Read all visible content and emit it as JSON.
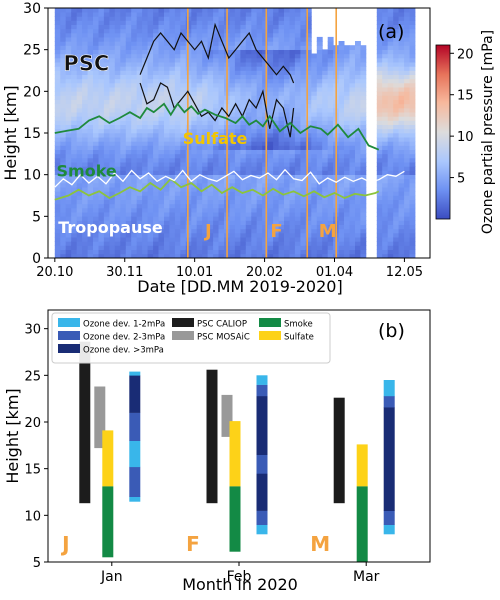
{
  "chart_data": [
    {
      "panel_label": "(a)",
      "type": "heatmap",
      "xlabel": "Date [DD.MM 2019-2020]",
      "ylabel": "Height [km]",
      "x_ticks": [
        "20.10",
        "30.11",
        "10.01",
        "20.02",
        "01.04",
        "12.05"
      ],
      "x_tick_days": [
        0,
        41,
        82,
        123,
        164,
        205
      ],
      "xlim_days": [
        -4,
        220
      ],
      "ylim": [
        0,
        30
      ],
      "y_ticks": [
        0,
        5,
        10,
        15,
        20,
        25,
        30
      ],
      "colorbar": {
        "label": "Ozone partial pressure [mPa]",
        "range": [
          0,
          21
        ],
        "ticks": [
          5,
          10,
          15,
          20
        ],
        "colors": [
          "#3b4cc0",
          "#6f92f3",
          "#aac7fd",
          "#dddcdc",
          "#f7b89c",
          "#e7745b",
          "#b40426"
        ]
      },
      "month_markers": {
        "days": [
          78,
          101,
          124,
          148,
          165
        ],
        "color": "#f4a340"
      },
      "month_letters": [
        {
          "text": "J",
          "day": 90,
          "km": 2.5
        },
        {
          "text": "F",
          "day": 130,
          "km": 2.5
        },
        {
          "text": "M",
          "day": 160,
          "km": 2.5
        }
      ],
      "annotations": [
        {
          "text": "PSC",
          "day": 5,
          "km": 22.5,
          "color": "#111111"
        },
        {
          "text": "Sulfate",
          "day": 75,
          "km": 13.7,
          "color": "#f2c500"
        },
        {
          "text": "Smoke",
          "day": 1,
          "km": 9.8,
          "color": "#1f8a3c"
        },
        {
          "text": "Tropopause",
          "day": 2,
          "km": 3.0,
          "color": "#ffffff"
        }
      ],
      "series": [
        {
          "name": "PSC",
          "color": "#111111",
          "days": [
            50,
            54,
            58,
            62,
            66,
            70,
            74,
            78,
            82,
            86,
            90,
            94,
            98,
            102,
            106,
            110,
            114,
            118,
            122,
            126,
            130,
            134,
            138,
            140
          ],
          "top": [
            22,
            24,
            26,
            27,
            26,
            25,
            27,
            26,
            25,
            26,
            24,
            28,
            26,
            24,
            25,
            26,
            27,
            25,
            24,
            23,
            22,
            23,
            22,
            21
          ],
          "bottom": [
            21,
            18.5,
            19,
            21,
            20.5,
            18,
            19,
            20,
            18.5,
            17,
            17.5,
            16.5,
            18,
            17,
            18.5,
            17,
            19,
            18,
            20,
            15.5,
            19,
            18,
            14.5,
            18
          ]
        },
        {
          "name": "Smoke top",
          "color": "#1f8a3c",
          "days": [
            0,
            8,
            14,
            20,
            26,
            32,
            38,
            44,
            50,
            54,
            58,
            64,
            68,
            72,
            76,
            80,
            84,
            88,
            94,
            100,
            106,
            110,
            114,
            118,
            122,
            126,
            132,
            138,
            144,
            150,
            156,
            160,
            166,
            172,
            178,
            184,
            190
          ],
          "values": [
            15,
            15.3,
            15.5,
            16.5,
            17,
            16.2,
            16.8,
            17.5,
            16.8,
            18,
            17.5,
            18.5,
            17.2,
            18.5,
            17.5,
            18.2,
            17.3,
            17.8,
            17.2,
            16.8,
            16.2,
            17,
            16,
            16.5,
            15.8,
            17,
            15.2,
            16.2,
            15,
            15.8,
            15.5,
            14.8,
            16,
            14.5,
            15.5,
            13.5,
            13
          ]
        },
        {
          "name": "Smoke bottom",
          "color": "#8cc43c",
          "days": [
            0,
            8,
            14,
            20,
            26,
            32,
            38,
            44,
            50,
            56,
            62,
            68,
            74,
            80,
            86,
            92,
            98,
            104,
            110,
            116,
            122,
            128,
            134,
            140,
            146,
            152,
            158,
            164,
            170,
            176,
            182,
            188,
            190
          ],
          "values": [
            7,
            7.5,
            8.2,
            7.5,
            8,
            7.2,
            7.8,
            8.5,
            8,
            9,
            8.2,
            9.5,
            8.5,
            9,
            8,
            8.8,
            7.8,
            8.5,
            7.8,
            8.2,
            7.5,
            8.3,
            7.6,
            8,
            7.4,
            8,
            7.3,
            7.8,
            7.2,
            7.7,
            7.5,
            7.8,
            8
          ]
        },
        {
          "name": "Tropopause",
          "color": "#ffffff",
          "days": [
            0,
            5,
            10,
            15,
            20,
            25,
            30,
            35,
            40,
            45,
            50,
            55,
            60,
            65,
            70,
            75,
            80,
            85,
            90,
            95,
            100,
            105,
            110,
            115,
            120,
            125,
            130,
            135,
            140,
            145,
            150,
            155,
            160,
            165,
            170,
            175,
            180,
            185,
            190,
            195,
            200,
            205
          ],
          "values": [
            8.5,
            9.5,
            8.8,
            10,
            9,
            9.8,
            8.9,
            10.2,
            9.2,
            10.5,
            9.5,
            10.2,
            9.2,
            9.8,
            9.3,
            10.5,
            9.2,
            10,
            9.5,
            9.2,
            9.8,
            10.4,
            9.4,
            9.9,
            9.6,
            10.2,
            9.4,
            10.6,
            9.5,
            9.3,
            10.3,
            8.9,
            9.6,
            9.1,
            9.7,
            9.2,
            9.6,
            9.1,
            9.4,
            10,
            9.8,
            10.4
          ]
        }
      ]
    },
    {
      "panel_label": "(b)",
      "type": "range-bar",
      "xlabel": "Month in 2020",
      "ylabel": "Height [km]",
      "categories": [
        "Jan",
        "Feb",
        "Mar"
      ],
      "month_letters": [
        "J",
        "F",
        "M"
      ],
      "ylim": [
        5,
        32
      ],
      "y_ticks": [
        5,
        10,
        15,
        20,
        25,
        30
      ],
      "legend": [
        {
          "name": "Ozone dev. 1-2mPa",
          "color": "#39b6ea"
        },
        {
          "name": "Ozone dev. 2-3mPa",
          "color": "#3a5bb6"
        },
        {
          "name": "Ozone dev. >3mPa",
          "color": "#192c75"
        },
        {
          "name": "PSC CALIOP",
          "color": "#1c1c1c"
        },
        {
          "name": "PSC MOSAiC",
          "color": "#999999"
        },
        {
          "name": "Smoke",
          "color": "#138a45"
        },
        {
          "name": "Sulfate",
          "color": "#fdd218"
        }
      ],
      "bars": [
        {
          "month": "Jan",
          "series": "PSC CALIOP",
          "from": 11.3,
          "to": 28.6
        },
        {
          "month": "Jan",
          "series": "PSC MOSAiC",
          "from": 17.2,
          "to": 23.8
        },
        {
          "month": "Jan",
          "series": "Sulfate",
          "from": 13.1,
          "to": 19.1
        },
        {
          "month": "Jan",
          "series": "Smoke",
          "from": 5.5,
          "to": 13.1
        },
        {
          "month": "Feb",
          "series": "PSC CALIOP",
          "from": 11.3,
          "to": 25.6
        },
        {
          "month": "Feb",
          "series": "PSC MOSAiC",
          "from": 18.4,
          "to": 22.9
        },
        {
          "month": "Feb",
          "series": "Sulfate",
          "from": 13.1,
          "to": 20.1
        },
        {
          "month": "Feb",
          "series": "Smoke",
          "from": 6.1,
          "to": 13.1
        },
        {
          "month": "Mar",
          "series": "PSC CALIOP",
          "from": 11.3,
          "to": 22.6
        },
        {
          "month": "Mar",
          "series": "Sulfate",
          "from": 13.1,
          "to": 17.6
        },
        {
          "month": "Mar",
          "series": "Smoke",
          "from": 5.0,
          "to": 13.1
        }
      ],
      "ozone_columns": [
        {
          "month": "Jan",
          "segments": [
            {
              "from": 11.5,
              "to": 12.0,
              "series": "Ozone dev. 1-2mPa"
            },
            {
              "from": 12.0,
              "to": 15.2,
              "series": "Ozone dev. 2-3mPa"
            },
            {
              "from": 15.2,
              "to": 18.0,
              "series": "Ozone dev. 1-2mPa"
            },
            {
              "from": 18.0,
              "to": 21.0,
              "series": "Ozone dev. 2-3mPa"
            },
            {
              "from": 21.0,
              "to": 25.0,
              "series": "Ozone dev. >3mPa"
            },
            {
              "from": 25.0,
              "to": 25.4,
              "series": "Ozone dev. 1-2mPa"
            }
          ]
        },
        {
          "month": "Feb",
          "segments": [
            {
              "from": 8.0,
              "to": 9.0,
              "series": "Ozone dev. 1-2mPa"
            },
            {
              "from": 9.0,
              "to": 10.5,
              "series": "Ozone dev. 2-3mPa"
            },
            {
              "from": 10.5,
              "to": 14.5,
              "series": "Ozone dev. >3mPa"
            },
            {
              "from": 14.5,
              "to": 16.5,
              "series": "Ozone dev. 2-3mPa"
            },
            {
              "from": 16.5,
              "to": 22.8,
              "series": "Ozone dev. >3mPa"
            },
            {
              "from": 22.8,
              "to": 24.0,
              "series": "Ozone dev. 2-3mPa"
            },
            {
              "from": 24.0,
              "to": 25.0,
              "series": "Ozone dev. 1-2mPa"
            }
          ]
        },
        {
          "month": "Mar",
          "segments": [
            {
              "from": 8.0,
              "to": 9.0,
              "series": "Ozone dev. 1-2mPa"
            },
            {
              "from": 9.0,
              "to": 10.5,
              "series": "Ozone dev. 2-3mPa"
            },
            {
              "from": 10.5,
              "to": 21.6,
              "series": "Ozone dev. >3mPa"
            },
            {
              "from": 21.6,
              "to": 22.8,
              "series": "Ozone dev. 2-3mPa"
            },
            {
              "from": 22.8,
              "to": 24.5,
              "series": "Ozone dev. 1-2mPa"
            }
          ]
        }
      ]
    }
  ]
}
